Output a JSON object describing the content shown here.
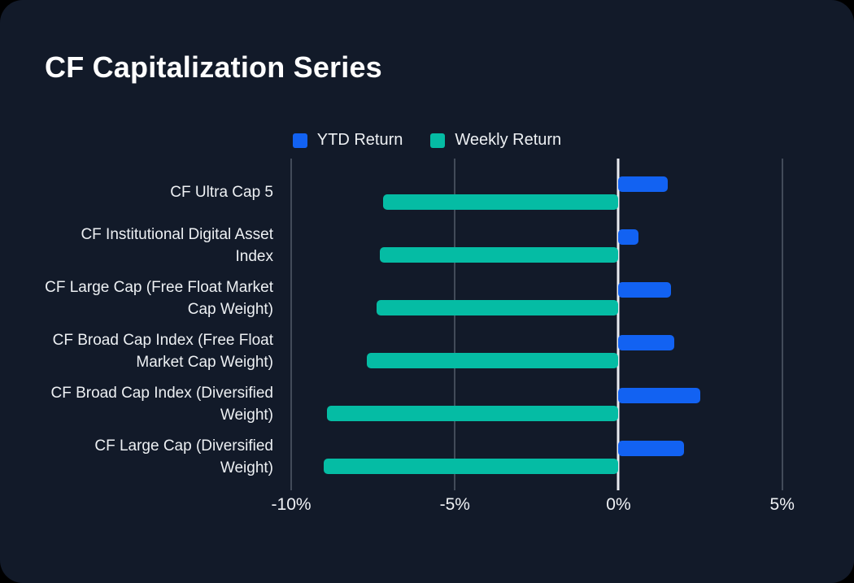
{
  "title": "CF Capitalization Series",
  "colors": {
    "page_background": "#000000",
    "card_background": "#121A29",
    "grid_line": "#424B59",
    "zero_line": "#E9EBEF",
    "text_primary": "#FFFFFF",
    "text_secondary": "#EDF0F3",
    "ytd_blue": "#1262F2",
    "weekly_teal": "#05BCA4"
  },
  "chart_data": {
    "type": "bar",
    "orientation": "horizontal",
    "title": "CF Capitalization Series",
    "categories": [
      "CF Ultra Cap 5",
      "CF Institutional Digital Asset Index",
      "CF Large Cap (Free Float Market Cap Weight)",
      "CF Broad Cap Index (Free Float Market Cap Weight)",
      "CF Broad Cap Index (Diversified Weight)",
      "CF Large Cap (Diversified Weight)"
    ],
    "series": [
      {
        "name": "YTD Return",
        "color": "#1262F2",
        "values": [
          1.5,
          0.6,
          1.6,
          1.7,
          2.5,
          2.0
        ]
      },
      {
        "name": "Weekly Return",
        "color": "#05BCA4",
        "values": [
          -7.2,
          -7.3,
          -7.4,
          -7.7,
          -8.9,
          -9.0
        ]
      }
    ],
    "value_unit": "%",
    "xlim": [
      -10.2,
      6.2
    ],
    "xticks": [
      {
        "value": -10,
        "label": "-10%"
      },
      {
        "value": -5,
        "label": "-5%"
      },
      {
        "value": 0,
        "label": "0%"
      },
      {
        "value": 5,
        "label": "5%"
      }
    ],
    "grid": true,
    "legend_position": "top"
  }
}
